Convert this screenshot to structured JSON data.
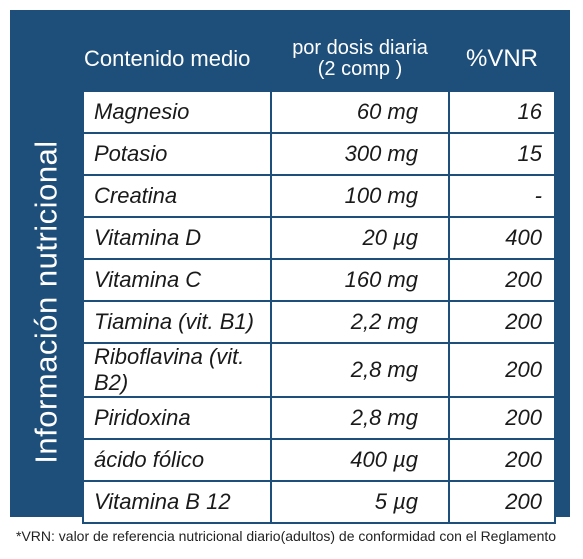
{
  "side_label": "Información nutricional",
  "headers": {
    "content": "Contenido medio",
    "dose_line1": "por dosis diaria",
    "dose_line2": "(2 comp )",
    "vnr": "%VNR"
  },
  "rows": [
    {
      "name": "Magnesio",
      "amount": "60 mg",
      "vnr": "16"
    },
    {
      "name": "Potasio",
      "amount": "300 mg",
      "vnr": "15"
    },
    {
      "name": "Creatina",
      "amount": "100 mg",
      "vnr": "-"
    },
    {
      "name": "Vitamina D",
      "amount": "20 µg",
      "vnr": "400"
    },
    {
      "name": "Vitamina C",
      "amount": "160 mg",
      "vnr": "200"
    },
    {
      "name": "Tiamina (vit. B1)",
      "amount": "2,2 mg",
      "vnr": "200"
    },
    {
      "name": "Riboflavina (vit. B2)",
      "amount": "2,8 mg",
      "vnr": "200"
    },
    {
      "name": "Piridoxina",
      "amount": "2,8 mg",
      "vnr": "200"
    },
    {
      "name": "ácido fólico",
      "amount": "400 µg",
      "vnr": "200"
    },
    {
      "name": "Vitamina B 12",
      "amount": "5 µg",
      "vnr": "200"
    }
  ],
  "footnote": "*VRN: valor de referencia nutricional diario(adultos) de conformidad con el Reglamento"
}
